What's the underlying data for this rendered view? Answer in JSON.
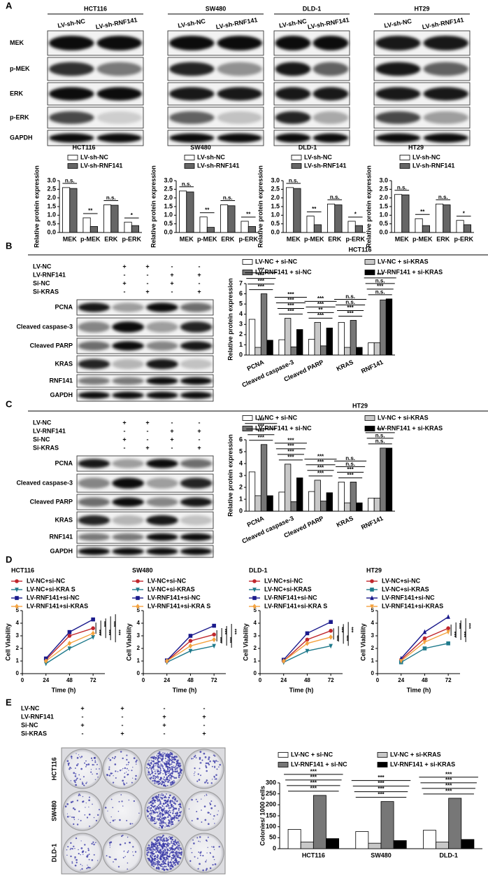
{
  "panel_labels": [
    "A",
    "B",
    "C",
    "D",
    "E"
  ],
  "panel_a": {
    "blots": [
      {
        "cell_line": "HCT116",
        "lanes": [
          "LV-sh-NC",
          "LV-sh-RNF141"
        ]
      },
      {
        "cell_line": "SW480",
        "lanes": [
          "LV-sh-NC",
          "LV-sh-RNF141"
        ]
      },
      {
        "cell_line": "DLD-1",
        "lanes": [
          "LV-sh-NC",
          "LV-sh-RNF141"
        ]
      },
      {
        "cell_line": "HT29",
        "lanes": [
          "LV-sh-NC",
          "LV-sh-RNF141"
        ]
      }
    ],
    "proteins": [
      "MEK",
      "p-MEK",
      "ERK",
      "p-ERK",
      "GAPDH"
    ]
  },
  "panel_b": {
    "conditions": [
      {
        "name": "LV-NC",
        "signs": [
          "+",
          "+",
          "-",
          "-"
        ]
      },
      {
        "name": "LV-RNF141",
        "signs": [
          "-",
          "-",
          "+",
          "+"
        ]
      },
      {
        "name": "Si-NC",
        "signs": [
          "+",
          "-",
          "+",
          "-"
        ]
      },
      {
        "name": "Si-KRAS",
        "signs": [
          "-",
          "+",
          "-",
          "+"
        ]
      }
    ],
    "proteins": [
      "PCNA",
      "Cleaved caspase-3",
      "Cleaved PARP",
      "KRAS",
      "RNF141",
      "GAPDH"
    ]
  },
  "panel_c": {
    "conditions": [
      {
        "name": "LV-NC",
        "signs": [
          "+",
          "+",
          "-",
          "-"
        ]
      },
      {
        "name": "LV-RNF141",
        "signs": [
          "-",
          "-",
          "+",
          "+"
        ]
      },
      {
        "name": "Si-NC",
        "signs": [
          "+",
          "-",
          "+",
          "-"
        ]
      },
      {
        "name": "Si-KRAS",
        "signs": [
          "-",
          "+",
          "-",
          "+"
        ]
      }
    ],
    "proteins": [
      "PCNA",
      "Cleaved caspase-3",
      "Cleaved PARP",
      "KRAS",
      "RNF141",
      "GAPDH"
    ]
  },
  "panel_e": {
    "conditions": [
      {
        "name": "LV-NC",
        "signs": [
          "+",
          "+",
          "-",
          "-"
        ]
      },
      {
        "name": "LV-RNF141",
        "signs": [
          "-",
          "-",
          "+",
          "+"
        ]
      },
      {
        "name": "Si-NC",
        "signs": [
          "+",
          "-",
          "+",
          "-"
        ]
      },
      {
        "name": "Si-KRAS",
        "signs": [
          "-",
          "+",
          "-",
          "+"
        ]
      }
    ],
    "cell_lines": [
      "HCT116",
      "SW480",
      "DLD-1"
    ]
  },
  "chart_data": [
    {
      "type": "bar",
      "title": "HCT116",
      "y_label": "Relative protein expression",
      "categories": [
        "MEK",
        "p-MEK",
        "ERK",
        "p-ERK"
      ],
      "series": [
        {
          "name": "LV-sh-NC",
          "color": "#ffffff",
          "values": [
            2.6,
            0.85,
            1.6,
            0.6
          ]
        },
        {
          "name": "LV-sh-RNF141",
          "color": "#666666",
          "values": [
            2.55,
            0.35,
            1.58,
            0.4
          ]
        }
      ],
      "ylim": [
        0,
        3
      ],
      "yticks": [
        {
          "value": 0,
          "label": "0.0"
        },
        0.5,
        {
          "value": 1,
          "label": "1.0"
        },
        1.5,
        {
          "value": 2,
          "label": "2.0"
        },
        2.5,
        {
          "value": 3,
          "label": "3.0"
        }
      ],
      "annotations": [
        [
          "n.s."
        ],
        [
          "**"
        ],
        [
          "n.s."
        ],
        [
          "*"
        ]
      ]
    },
    {
      "type": "bar",
      "title": "SW480",
      "y_label": "Relative protein expression",
      "categories": [
        "MEK",
        "p-MEK",
        "ERK",
        "p-ERK"
      ],
      "series": [
        {
          "name": "LV-sh-NC",
          "color": "#ffffff",
          "values": [
            2.4,
            0.9,
            1.6,
            0.65
          ]
        },
        {
          "name": "LV-sh-RNF141",
          "color": "#666666",
          "values": [
            2.35,
            0.3,
            1.55,
            0.35
          ]
        }
      ],
      "ylim": [
        0,
        3
      ],
      "yticks": [
        {
          "value": 0,
          "label": "0.0"
        },
        0.5,
        {
          "value": 1,
          "label": "1.0"
        },
        1.5,
        {
          "value": 2,
          "label": "2.0"
        },
        2.5,
        {
          "value": 3,
          "label": "3.0"
        }
      ],
      "annotations": [
        [
          "n.s."
        ],
        [
          "**"
        ],
        [
          "n.s."
        ],
        [
          "**"
        ]
      ]
    },
    {
      "type": "bar",
      "title": "DLD-1",
      "y_label": "Relative protein expression",
      "categories": [
        "MEK",
        "p-MEK",
        "ERK",
        "p-ERK"
      ],
      "series": [
        {
          "name": "LV-sh-NC",
          "color": "#ffffff",
          "values": [
            2.6,
            0.95,
            1.65,
            0.65
          ]
        },
        {
          "name": "LV-sh-RNF141",
          "color": "#666666",
          "values": [
            2.55,
            0.45,
            1.6,
            0.4
          ]
        }
      ],
      "ylim": [
        0,
        3
      ],
      "yticks": [
        {
          "value": 0,
          "label": "0.0"
        },
        0.5,
        {
          "value": 1,
          "label": "1.0"
        },
        1.5,
        {
          "value": 2,
          "label": "2.0"
        },
        2.5,
        {
          "value": 3,
          "label": "3.0"
        }
      ],
      "annotations": [
        [
          "n.s."
        ],
        [
          "**"
        ],
        [
          "n.s."
        ],
        [
          "*"
        ]
      ]
    },
    {
      "type": "bar",
      "title": "HT29",
      "y_label": "Relative protein expression",
      "categories": [
        "MEK",
        "p-MEK",
        "ERK",
        "p-ERK"
      ],
      "series": [
        {
          "name": "LV-sh-NC",
          "color": "#ffffff",
          "values": [
            2.2,
            0.8,
            1.65,
            0.7
          ]
        },
        {
          "name": "LV-sh-RNF141",
          "color": "#666666",
          "values": [
            2.18,
            0.4,
            1.6,
            0.45
          ]
        }
      ],
      "ylim": [
        0,
        3
      ],
      "yticks": [
        {
          "value": 0,
          "label": "0.0"
        },
        0.5,
        {
          "value": 1,
          "label": "1.0"
        },
        1.5,
        {
          "value": 2,
          "label": "2.0"
        },
        2.5,
        {
          "value": 3,
          "label": "3.0"
        }
      ],
      "annotations": [
        [
          "n.s."
        ],
        [
          "**"
        ],
        [
          "n.s."
        ],
        [
          "*"
        ]
      ]
    },
    {
      "type": "bar",
      "title": "HCT116",
      "y_label": "Relative protein expression",
      "categories": [
        "PCNA",
        "Cleaved caspase-3",
        "Cleaved PARP",
        "KRAS",
        "RNF141"
      ],
      "series": [
        {
          "name": "LV-NC + si-NC",
          "color": "#ffffff",
          "values": [
            3.5,
            1.5,
            1.55,
            3.2,
            1.2
          ]
        },
        {
          "name": "LV-NC + si-KRAS",
          "color": "#c8c8c8",
          "values": [
            0.75,
            3.6,
            3.2,
            0.75,
            1.2
          ]
        },
        {
          "name": "LV-RNF141 + si-NC",
          "color": "#777777",
          "values": [
            6.0,
            0.8,
            0.9,
            3.4,
            5.4
          ]
        },
        {
          "name": "LV-RNF141 + si-KRAS",
          "color": "#000000",
          "values": [
            1.45,
            2.5,
            2.65,
            0.75,
            5.5
          ]
        }
      ],
      "ylim": [
        0,
        7
      ],
      "yticks": [
        0,
        1,
        2,
        3,
        4,
        5,
        6,
        7
      ],
      "annotations": [
        [
          "***",
          "***",
          "***",
          "***"
        ],
        [
          "***",
          "***",
          "***",
          "***"
        ],
        [
          "***",
          "**",
          "***",
          "***"
        ],
        [
          "***",
          "***",
          "n.s.",
          "n.s."
        ],
        [
          "n.s.",
          "***",
          "n.s.",
          "***"
        ]
      ]
    },
    {
      "type": "bar",
      "title": "HT29",
      "y_label": "Relative protein expression",
      "categories": [
        "PCNA",
        "Cleaved caspase-3",
        "Cleaved PARP",
        "KRAS",
        "RNF141"
      ],
      "series": [
        {
          "name": "LV-NC + si-NC",
          "color": "#ffffff",
          "values": [
            3.3,
            1.6,
            1.65,
            2.45,
            1.1
          ]
        },
        {
          "name": "LV-NC + si-KRAS",
          "color": "#c8c8c8",
          "values": [
            1.3,
            3.95,
            2.6,
            0.7,
            1.1
          ]
        },
        {
          "name": "LV-RNF141 + si-NC",
          "color": "#777777",
          "values": [
            5.6,
            0.8,
            0.85,
            2.45,
            5.3
          ]
        },
        {
          "name": "LV-RNF141 + si-KRAS",
          "color": "#000000",
          "values": [
            1.3,
            2.8,
            1.55,
            0.7,
            5.3
          ]
        }
      ],
      "ylim": [
        0,
        6
      ],
      "yticks": [
        0,
        1,
        2,
        3,
        4,
        5,
        6
      ],
      "annotations": [
        [
          "***",
          "***",
          "***",
          "***"
        ],
        [
          "***",
          "***",
          "***",
          "***"
        ],
        [
          "***",
          "***",
          "***",
          "***"
        ],
        [
          "***",
          "***",
          "n.s.",
          "n.s."
        ],
        [
          "n.s.",
          "n.s.",
          "***"
        ]
      ]
    },
    {
      "type": "line",
      "title": "HCT116",
      "x_label": "Time (h)",
      "y_label": "Cell Viability",
      "x": [
        24,
        48,
        72
      ],
      "series": [
        {
          "name": "LV-NC+si-NC",
          "color": "#c0272d",
          "marker": "circle",
          "values": [
            1.1,
            3.0,
            3.6
          ]
        },
        {
          "name": "LV-NC+si-KRA S",
          "color": "#1f7a8c",
          "marker": "triangle-down",
          "values": [
            0.8,
            2.0,
            2.9
          ]
        },
        {
          "name": "LV-RNF141+si-NC",
          "color": "#1a1a8c",
          "marker": "square",
          "values": [
            1.2,
            3.3,
            4.3
          ]
        },
        {
          "name": "LV-RNF141+si-KRAS",
          "color": "#f4a340",
          "marker": "diamond",
          "values": [
            1.0,
            2.4,
            3.2
          ]
        }
      ],
      "xlim": [
        0,
        84
      ],
      "xticks": [
        0,
        24,
        48,
        72
      ],
      "ylim": [
        0,
        5
      ],
      "yticks": [
        0,
        1,
        2,
        3,
        4,
        5
      ],
      "annotations": [
        "***",
        "***",
        "***",
        "***",
        "***"
      ]
    },
    {
      "type": "line",
      "title": "SW480",
      "x_label": "Time (h)",
      "y_label": "Cell Viability",
      "x": [
        24,
        48,
        72
      ],
      "series": [
        {
          "name": "LV-NC+si-NC",
          "color": "#c0272d",
          "marker": "circle",
          "values": [
            1.0,
            2.6,
            3.1
          ]
        },
        {
          "name": "LV-NC+si-KRAS",
          "color": "#1f7a8c",
          "marker": "triangle-down",
          "values": [
            0.9,
            1.8,
            2.2
          ]
        },
        {
          "name": "LV-RNF141+si-NC",
          "color": "#1a1a8c",
          "marker": "square",
          "values": [
            1.05,
            3.0,
            3.8
          ]
        },
        {
          "name": "LV-RNF141+si-KRA S",
          "color": "#f4a340",
          "marker": "diamond",
          "values": [
            1.0,
            2.2,
            2.7
          ]
        }
      ],
      "xlim": [
        0,
        84
      ],
      "xticks": [
        0,
        24,
        48,
        72
      ],
      "ylim": [
        0,
        5
      ],
      "yticks": [
        0,
        1,
        2,
        3,
        4,
        5
      ],
      "annotations": [
        "***",
        "***",
        "***",
        "***"
      ]
    },
    {
      "type": "line",
      "title": "DLD-1",
      "x_label": "Time (h)",
      "y_label": "Cell Viability",
      "x": [
        24,
        48,
        72
      ],
      "series": [
        {
          "name": "LV-NC+si-NC",
          "color": "#c0272d",
          "marker": "circle",
          "values": [
            1.0,
            2.7,
            3.4
          ]
        },
        {
          "name": "LV-NC+si-KRAS",
          "color": "#1f7a8c",
          "marker": "triangle-down",
          "values": [
            0.9,
            1.8,
            2.2
          ]
        },
        {
          "name": "LV-RNF141+si-NC",
          "color": "#1a1a8c",
          "marker": "square",
          "values": [
            1.1,
            3.2,
            4.1
          ]
        },
        {
          "name": "LV-RNF141+si-KRA S",
          "color": "#f4a340",
          "marker": "diamond",
          "values": [
            1.0,
            2.4,
            2.9
          ]
        }
      ],
      "xlim": [
        0,
        84
      ],
      "xticks": [
        0,
        24,
        48,
        72
      ],
      "ylim": [
        0,
        5
      ],
      "yticks": [
        0,
        1,
        2,
        3,
        4,
        5
      ],
      "annotations": [
        "***",
        "***",
        "***",
        "***"
      ]
    },
    {
      "type": "line",
      "title": "HT29",
      "x_label": "Time (h)",
      "y_label": "Cell Viability",
      "x": [
        24,
        48,
        72
      ],
      "series": [
        {
          "name": "LV-NC+si-NC",
          "color": "#c0272d",
          "marker": "circle",
          "values": [
            1.1,
            2.8,
            3.6
          ]
        },
        {
          "name": "LV-NC+si-KRAS",
          "color": "#1f7a8c",
          "marker": "square",
          "values": [
            0.9,
            2.0,
            2.4
          ]
        },
        {
          "name": "LV-RNF141+si-NC",
          "color": "#1a1a8c",
          "marker": "triangle",
          "values": [
            1.2,
            3.3,
            4.5
          ]
        },
        {
          "name": "LV-RNF141+si-KRAS",
          "color": "#f4a340",
          "marker": "triangle-down",
          "values": [
            1.0,
            2.5,
            3.3
          ]
        }
      ],
      "xlim": [
        0,
        84
      ],
      "xticks": [
        0,
        24,
        48,
        72
      ],
      "ylim": [
        0,
        5
      ],
      "yticks": [
        0,
        1,
        2,
        3,
        4,
        5
      ],
      "annotations": [
        "***",
        "***",
        "***",
        "***"
      ]
    },
    {
      "type": "bar",
      "y_label": "Colonies/ 1000 cells",
      "categories": [
        "HCT116",
        "SW480",
        "DLD-1"
      ],
      "series": [
        {
          "name": "LV-NC + si-NC",
          "color": "#ffffff",
          "values": [
            88,
            78,
            84
          ]
        },
        {
          "name": "LV-NC + si-KRAS",
          "color": "#c8c8c8",
          "values": [
            30,
            25,
            30
          ]
        },
        {
          "name": "LV-RNF141 + si-NC",
          "color": "#777777",
          "values": [
            243,
            215,
            230
          ]
        },
        {
          "name": "LV-RNF141 + si-KRAS",
          "color": "#000000",
          "values": [
            46,
            37,
            42
          ]
        }
      ],
      "ylim": [
        0,
        300
      ],
      "yticks": [
        0,
        50,
        100,
        150,
        200,
        250,
        300
      ],
      "annotations": [
        [
          "***",
          "***",
          "***",
          "***"
        ],
        [
          "***",
          "***",
          "***",
          "***"
        ],
        [
          "***",
          "***",
          "***",
          "***"
        ]
      ]
    }
  ]
}
